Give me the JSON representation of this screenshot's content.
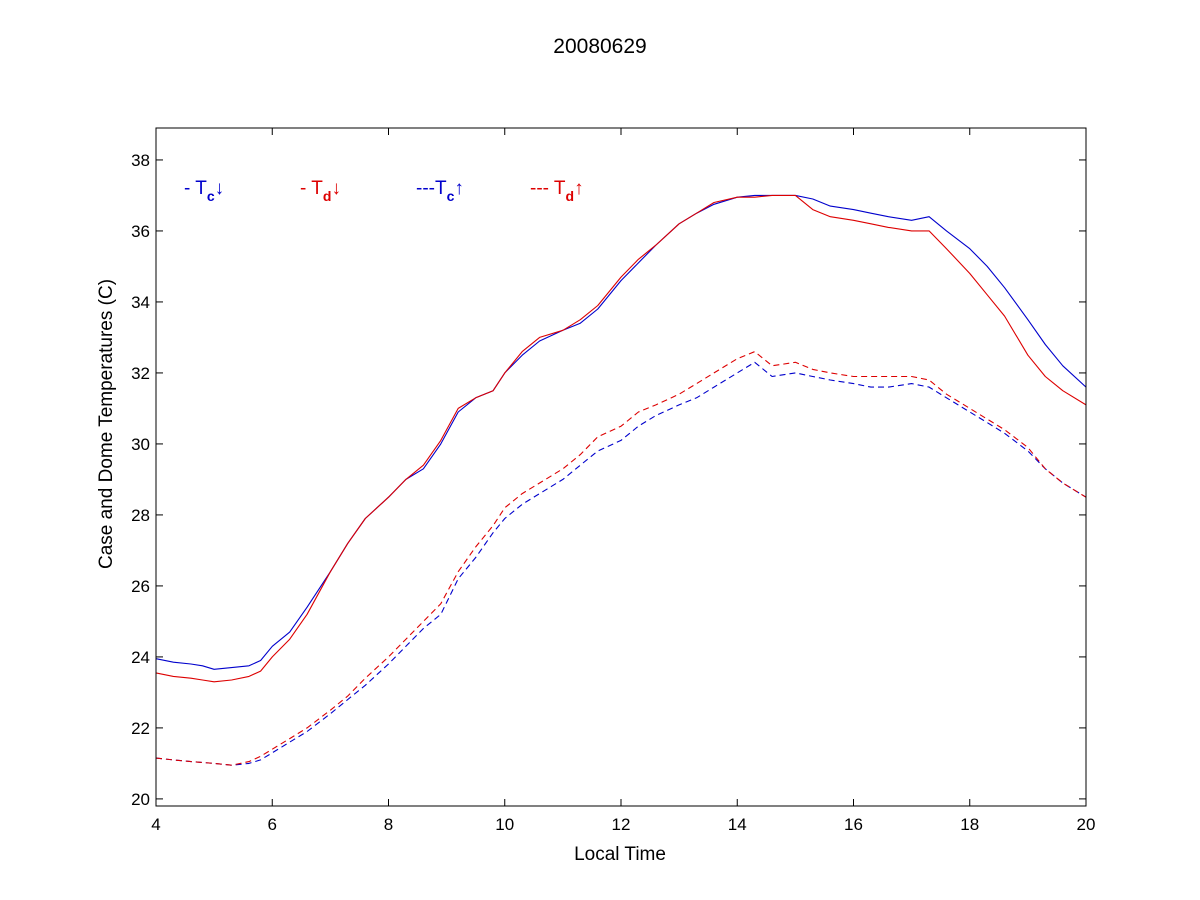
{
  "chart_data": {
    "type": "line",
    "title": "20080629",
    "xlabel": "Local Time",
    "ylabel": "Case and Dome Temperatures (C)",
    "xlim": [
      4,
      20
    ],
    "ylim": [
      19.8,
      38.9
    ],
    "xticks": [
      "4",
      "6",
      "8",
      "10",
      "12",
      "14",
      "16",
      "18",
      "20"
    ],
    "yticks": [
      "20",
      "22",
      "24",
      "26",
      "28",
      "30",
      "32",
      "34",
      "36",
      "38"
    ],
    "grid": false,
    "legend": {
      "placement": "top-left",
      "items": [
        {
          "prefix": "- T",
          "sub": "c",
          "arrow": "↓",
          "color": "#0000cc"
        },
        {
          "prefix": "- T",
          "sub": "d",
          "arrow": "↓",
          "color": "#dd0000"
        },
        {
          "prefix": "---T",
          "sub": "c",
          "arrow": "↑",
          "color": "#0000cc"
        },
        {
          "prefix": "--- T",
          "sub": "d",
          "arrow": "↑",
          "color": "#dd0000"
        }
      ]
    },
    "series": [
      {
        "style": "solid",
        "color": "#0000cc",
        "x": [
          4.0,
          4.3,
          4.6,
          4.8,
          5.0,
          5.3,
          5.6,
          5.8,
          6.0,
          6.3,
          6.6,
          7.0,
          7.3,
          7.6,
          8.0,
          8.3,
          8.6,
          8.9,
          9.2,
          9.5,
          9.8,
          10.0,
          10.3,
          10.6,
          11.0,
          11.3,
          11.6,
          12.0,
          12.3,
          12.6,
          13.0,
          13.3,
          13.6,
          14.0,
          14.3,
          14.6,
          15.0,
          15.3,
          15.6,
          16.0,
          16.3,
          16.6,
          17.0,
          17.3,
          17.6,
          18.0,
          18.3,
          18.6,
          19.0,
          19.3,
          19.6,
          20.0
        ],
        "y": [
          23.95,
          23.85,
          23.8,
          23.75,
          23.65,
          23.7,
          23.75,
          23.9,
          24.3,
          24.7,
          25.4,
          26.4,
          27.2,
          27.9,
          28.5,
          29.0,
          29.3,
          30.0,
          30.9,
          31.3,
          31.5,
          32.0,
          32.5,
          32.9,
          33.2,
          33.4,
          33.8,
          34.6,
          35.1,
          35.6,
          36.2,
          36.5,
          36.75,
          36.95,
          37.0,
          37.0,
          37.0,
          36.9,
          36.7,
          36.6,
          36.5,
          36.4,
          36.3,
          36.4,
          36.0,
          35.5,
          35.0,
          34.4,
          33.5,
          32.8,
          32.2,
          31.6
        ]
      },
      {
        "style": "solid",
        "color": "#dd0000",
        "x": [
          4.0,
          4.3,
          4.6,
          4.8,
          5.0,
          5.3,
          5.6,
          5.8,
          6.0,
          6.3,
          6.6,
          7.0,
          7.3,
          7.6,
          8.0,
          8.3,
          8.6,
          8.9,
          9.2,
          9.5,
          9.8,
          10.0,
          10.3,
          10.6,
          11.0,
          11.3,
          11.6,
          12.0,
          12.3,
          12.6,
          13.0,
          13.3,
          13.6,
          14.0,
          14.3,
          14.6,
          15.0,
          15.3,
          15.6,
          16.0,
          16.3,
          16.6,
          17.0,
          17.3,
          17.6,
          18.0,
          18.3,
          18.6,
          19.0,
          19.3,
          19.6,
          20.0
        ],
        "y": [
          23.55,
          23.45,
          23.4,
          23.35,
          23.3,
          23.35,
          23.45,
          23.6,
          24.0,
          24.5,
          25.2,
          26.4,
          27.2,
          27.9,
          28.5,
          29.0,
          29.4,
          30.1,
          31.0,
          31.3,
          31.5,
          32.0,
          32.6,
          33.0,
          33.2,
          33.5,
          33.9,
          34.7,
          35.2,
          35.6,
          36.2,
          36.5,
          36.8,
          36.95,
          36.95,
          37.0,
          37.0,
          36.6,
          36.4,
          36.3,
          36.2,
          36.1,
          36.0,
          36.0,
          35.5,
          34.8,
          34.2,
          33.6,
          32.5,
          31.9,
          31.5,
          31.1
        ]
      },
      {
        "style": "dashed",
        "color": "#0000cc",
        "x": [
          4.0,
          4.3,
          4.6,
          5.0,
          5.3,
          5.6,
          5.8,
          6.0,
          6.3,
          6.6,
          7.0,
          7.3,
          7.6,
          8.0,
          8.3,
          8.6,
          8.9,
          9.2,
          9.5,
          9.8,
          10.0,
          10.3,
          10.6,
          11.0,
          11.3,
          11.6,
          12.0,
          12.3,
          12.6,
          13.0,
          13.3,
          13.6,
          14.0,
          14.3,
          14.6,
          15.0,
          15.3,
          15.6,
          16.0,
          16.3,
          16.6,
          17.0,
          17.3,
          17.6,
          18.0,
          18.3,
          18.6,
          19.0,
          19.3,
          19.6,
          20.0
        ],
        "y": [
          21.15,
          21.1,
          21.05,
          21.0,
          20.95,
          21.0,
          21.1,
          21.3,
          21.6,
          21.9,
          22.4,
          22.8,
          23.2,
          23.8,
          24.3,
          24.8,
          25.2,
          26.2,
          26.8,
          27.5,
          27.9,
          28.3,
          28.6,
          29.0,
          29.4,
          29.8,
          30.1,
          30.5,
          30.8,
          31.1,
          31.3,
          31.6,
          32.0,
          32.3,
          31.9,
          32.0,
          31.9,
          31.8,
          31.7,
          31.6,
          31.6,
          31.7,
          31.6,
          31.3,
          30.9,
          30.6,
          30.3,
          29.8,
          29.3,
          28.9,
          28.5
        ]
      },
      {
        "style": "dashed",
        "color": "#dd0000",
        "x": [
          4.0,
          4.3,
          4.6,
          5.0,
          5.3,
          5.6,
          5.8,
          6.0,
          6.3,
          6.6,
          7.0,
          7.3,
          7.6,
          8.0,
          8.3,
          8.6,
          8.9,
          9.2,
          9.5,
          9.8,
          10.0,
          10.3,
          10.6,
          11.0,
          11.3,
          11.6,
          12.0,
          12.3,
          12.6,
          13.0,
          13.3,
          13.6,
          14.0,
          14.3,
          14.6,
          15.0,
          15.3,
          15.6,
          16.0,
          16.3,
          16.6,
          17.0,
          17.3,
          17.6,
          18.0,
          18.3,
          18.6,
          19.0,
          19.3,
          19.6,
          20.0
        ],
        "y": [
          21.15,
          21.1,
          21.05,
          21.0,
          20.95,
          21.05,
          21.2,
          21.4,
          21.7,
          22.0,
          22.5,
          22.9,
          23.4,
          24.0,
          24.5,
          25.0,
          25.5,
          26.4,
          27.1,
          27.7,
          28.2,
          28.6,
          28.9,
          29.3,
          29.7,
          30.2,
          30.5,
          30.9,
          31.1,
          31.4,
          31.7,
          32.0,
          32.4,
          32.6,
          32.2,
          32.3,
          32.1,
          32.0,
          31.9,
          31.9,
          31.9,
          31.9,
          31.8,
          31.4,
          31.0,
          30.7,
          30.4,
          29.9,
          29.3,
          28.9,
          28.5
        ]
      }
    ]
  }
}
